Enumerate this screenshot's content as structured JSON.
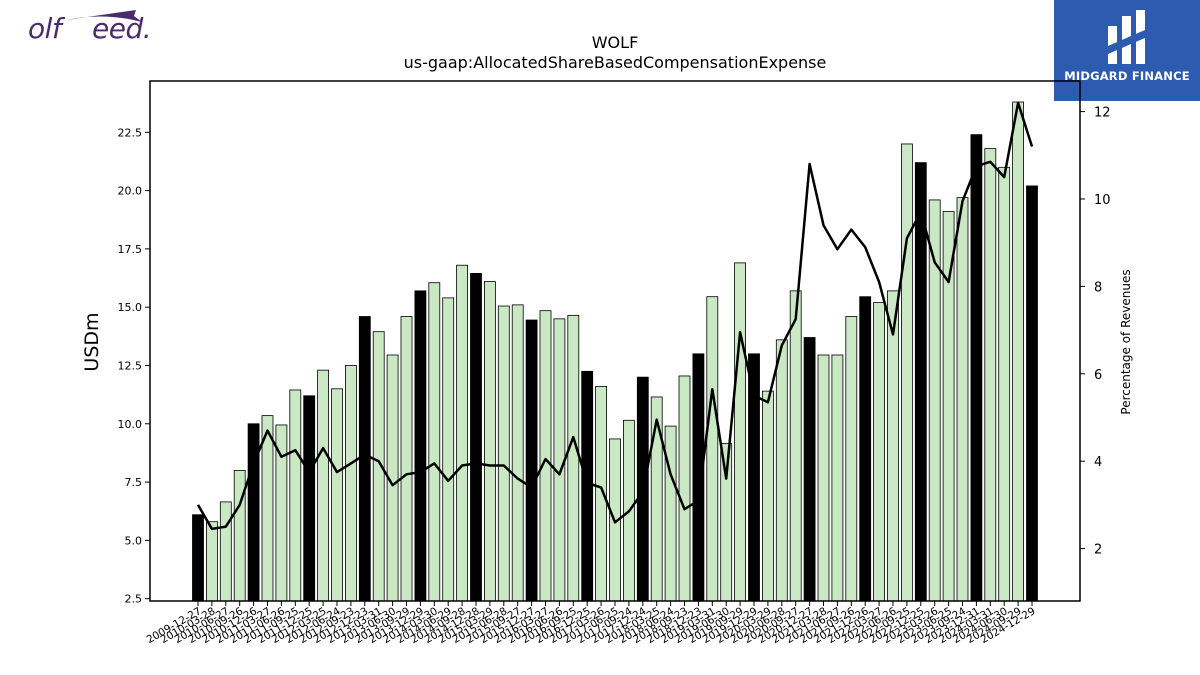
{
  "branding": {
    "left_logo_text": [
      "olf",
      "eed."
    ],
    "right_badge_text": "MIDGARD FINANCE",
    "badge_color": "#2d5bb0",
    "left_logo_color": "#4a2c6b"
  },
  "chart_data": {
    "type": "bar",
    "title": "WOLF",
    "subtitle": "us-gaap:AllocatedShareBasedCompensationExpense",
    "ylabel": "USDm",
    "y2label": "Percentage of Revenues",
    "ylim": [
      2.4,
      24.7
    ],
    "y2lim": [
      0.8,
      12.7
    ],
    "yticks": [
      "2.5",
      "5.0",
      "7.5",
      "10.0",
      "12.5",
      "15.0",
      "17.5",
      "20.0",
      "22.5"
    ],
    "y2ticks": [
      "2",
      "4",
      "6",
      "8",
      "10",
      "12"
    ],
    "colors": {
      "fiscal_year_end": "#000000",
      "quarter": "#c9e8c3",
      "line": "#000000"
    },
    "categories": [
      "2009-12-27",
      "2010-03-28",
      "2010-06-27",
      "2010-09-26",
      "2010-12-26",
      "2011-03-27",
      "2011-06-26",
      "2011-09-25",
      "2011-12-25",
      "2012-03-25",
      "2012-06-24",
      "2012-09-23",
      "2012-12-23",
      "2013-03-31",
      "2013-06-30",
      "2013-09-29",
      "2013-12-29",
      "2014-03-30",
      "2014-06-29",
      "2014-09-28",
      "2014-12-28",
      "2015-03-29",
      "2015-06-28",
      "2015-09-27",
      "2015-12-27",
      "2016-03-27",
      "2016-06-26",
      "2016-09-25",
      "2016-12-25",
      "2017-03-26",
      "2017-06-25",
      "2017-09-24",
      "2017-12-24",
      "2018-03-25",
      "2018-06-24",
      "2018-09-23",
      "2018-12-23",
      "2019-03-31",
      "2019-06-30",
      "2019-09-29",
      "2019-12-29",
      "2020-03-29",
      "2020-06-28",
      "2020-09-27",
      "2020-12-27",
      "2021-03-28",
      "2021-06-27",
      "2021-09-26",
      "2021-12-26",
      "2022-03-27",
      "2022-06-26",
      "2022-09-25",
      "2022-12-25",
      "2023-03-26",
      "2023-06-25",
      "2023-09-24",
      "2023-12-31",
      "2024-03-31",
      "2024-06-30",
      "2024-09-29",
      "2024-12-29"
    ],
    "series": [
      {
        "type": "bar",
        "axis": "left",
        "values": [
          6.1,
          5.8,
          6.65,
          8.0,
          10.0,
          10.35,
          9.95,
          11.45,
          11.2,
          12.3,
          11.5,
          12.5,
          14.6,
          13.95,
          12.95,
          14.6,
          15.7,
          16.05,
          15.4,
          16.8,
          16.45,
          16.1,
          15.05,
          15.1,
          14.45,
          14.85,
          14.5,
          14.65,
          12.25,
          11.6,
          9.35,
          10.15,
          12.0,
          11.15,
          9.9,
          12.05,
          13.0,
          15.45,
          9.15,
          16.9,
          13.0,
          11.4,
          13.6,
          15.7,
          13.7,
          12.95,
          12.95,
          14.6,
          15.45,
          15.2,
          15.7,
          22.0,
          21.2,
          19.6,
          19.1,
          19.7,
          22.4,
          21.8,
          21.0,
          23.8,
          20.2
        ],
        "fiscal_year_end": [
          true,
          false,
          false,
          false,
          true,
          false,
          false,
          false,
          true,
          false,
          false,
          false,
          true,
          false,
          false,
          false,
          true,
          false,
          false,
          false,
          true,
          false,
          false,
          false,
          true,
          false,
          false,
          false,
          true,
          false,
          false,
          false,
          true,
          false,
          false,
          false,
          true,
          false,
          false,
          false,
          true,
          false,
          false,
          false,
          true,
          false,
          false,
          false,
          true,
          false,
          false,
          false,
          true,
          false,
          false,
          false,
          true,
          false,
          false,
          false,
          true
        ]
      },
      {
        "type": "line",
        "axis": "right",
        "values": [
          3.0,
          2.45,
          2.5,
          3.0,
          3.95,
          4.7,
          4.1,
          4.25,
          3.75,
          4.3,
          3.75,
          3.95,
          4.15,
          4.0,
          3.45,
          3.7,
          3.75,
          3.95,
          3.55,
          3.9,
          3.95,
          3.9,
          3.9,
          3.6,
          3.4,
          4.05,
          3.7,
          4.55,
          3.5,
          3.4,
          2.6,
          2.85,
          3.3,
          4.95,
          3.7,
          2.9,
          3.1,
          5.65,
          3.6,
          6.95,
          5.5,
          5.35,
          6.65,
          7.25,
          10.8,
          9.4,
          8.85,
          9.3,
          8.9,
          8.1,
          6.9,
          9.1,
          9.7,
          8.55,
          8.1,
          9.95,
          10.75,
          10.85,
          10.5,
          12.2,
          11.2
        ]
      }
    ]
  }
}
